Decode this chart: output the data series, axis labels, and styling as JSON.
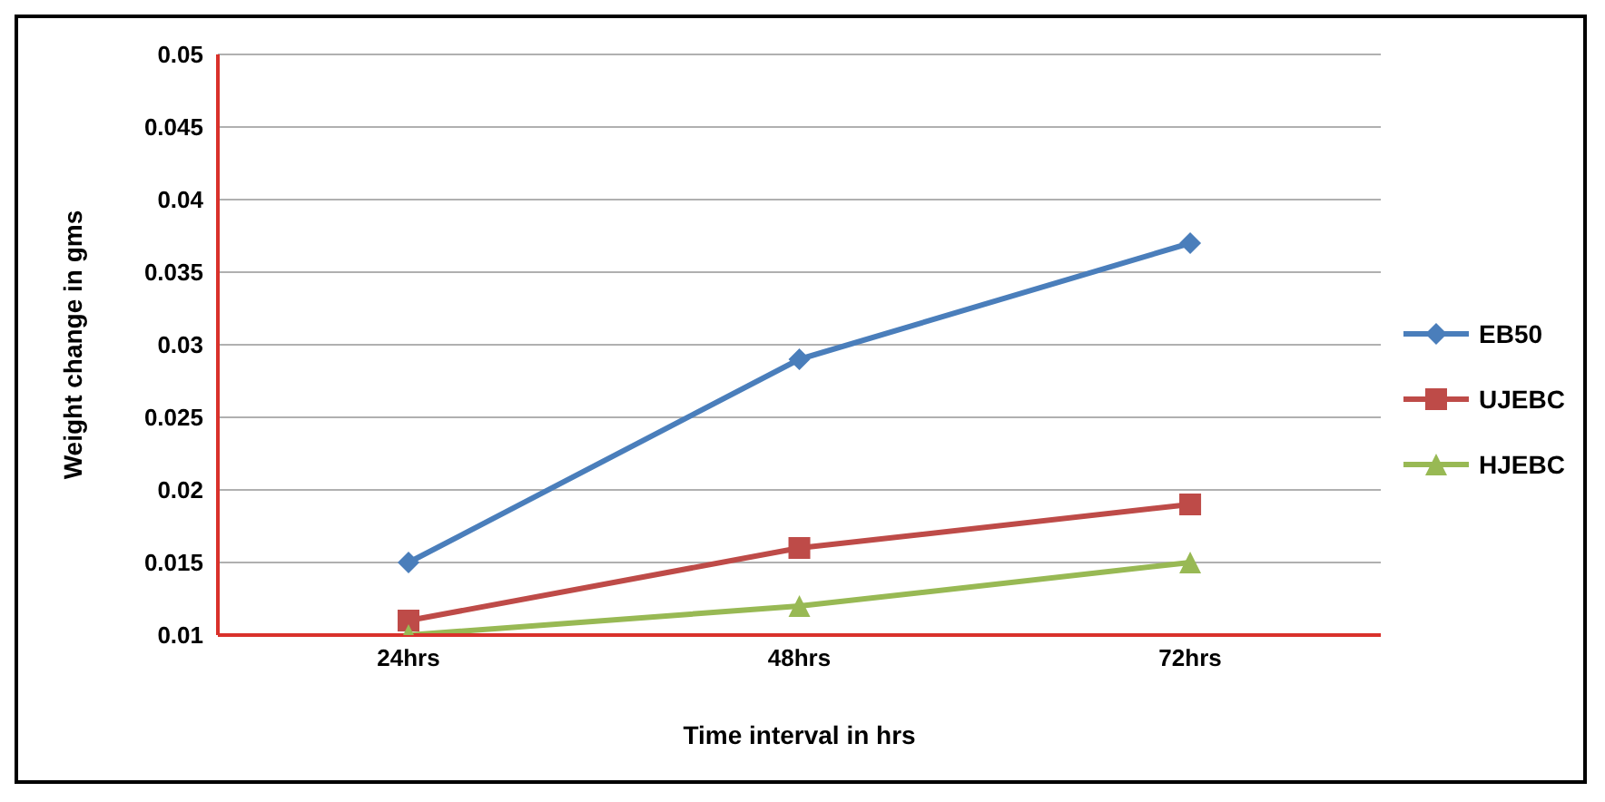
{
  "chart_data": {
    "type": "line",
    "xlabel": "Time interval in hrs",
    "ylabel": "Weight change in gms",
    "categories": [
      "24hrs",
      "48hrs",
      "72hrs"
    ],
    "series": [
      {
        "name": "EB50",
        "color": "#4a7ebb",
        "values": [
          0.015,
          0.029,
          0.037
        ],
        "marker": "diamond"
      },
      {
        "name": "UJEBC",
        "color": "#be4b48",
        "values": [
          0.011,
          0.016,
          0.019
        ],
        "marker": "square"
      },
      {
        "name": "HJEBC",
        "color": "#98b954",
        "values": [
          0.01,
          0.012,
          0.015
        ],
        "marker": "triangle"
      }
    ],
    "ylim": [
      0.01,
      0.05
    ],
    "yticks": [
      0.01,
      0.015,
      0.02,
      0.025,
      0.03,
      0.035,
      0.04,
      0.045,
      0.05
    ],
    "grid": "y",
    "legend": "right"
  }
}
